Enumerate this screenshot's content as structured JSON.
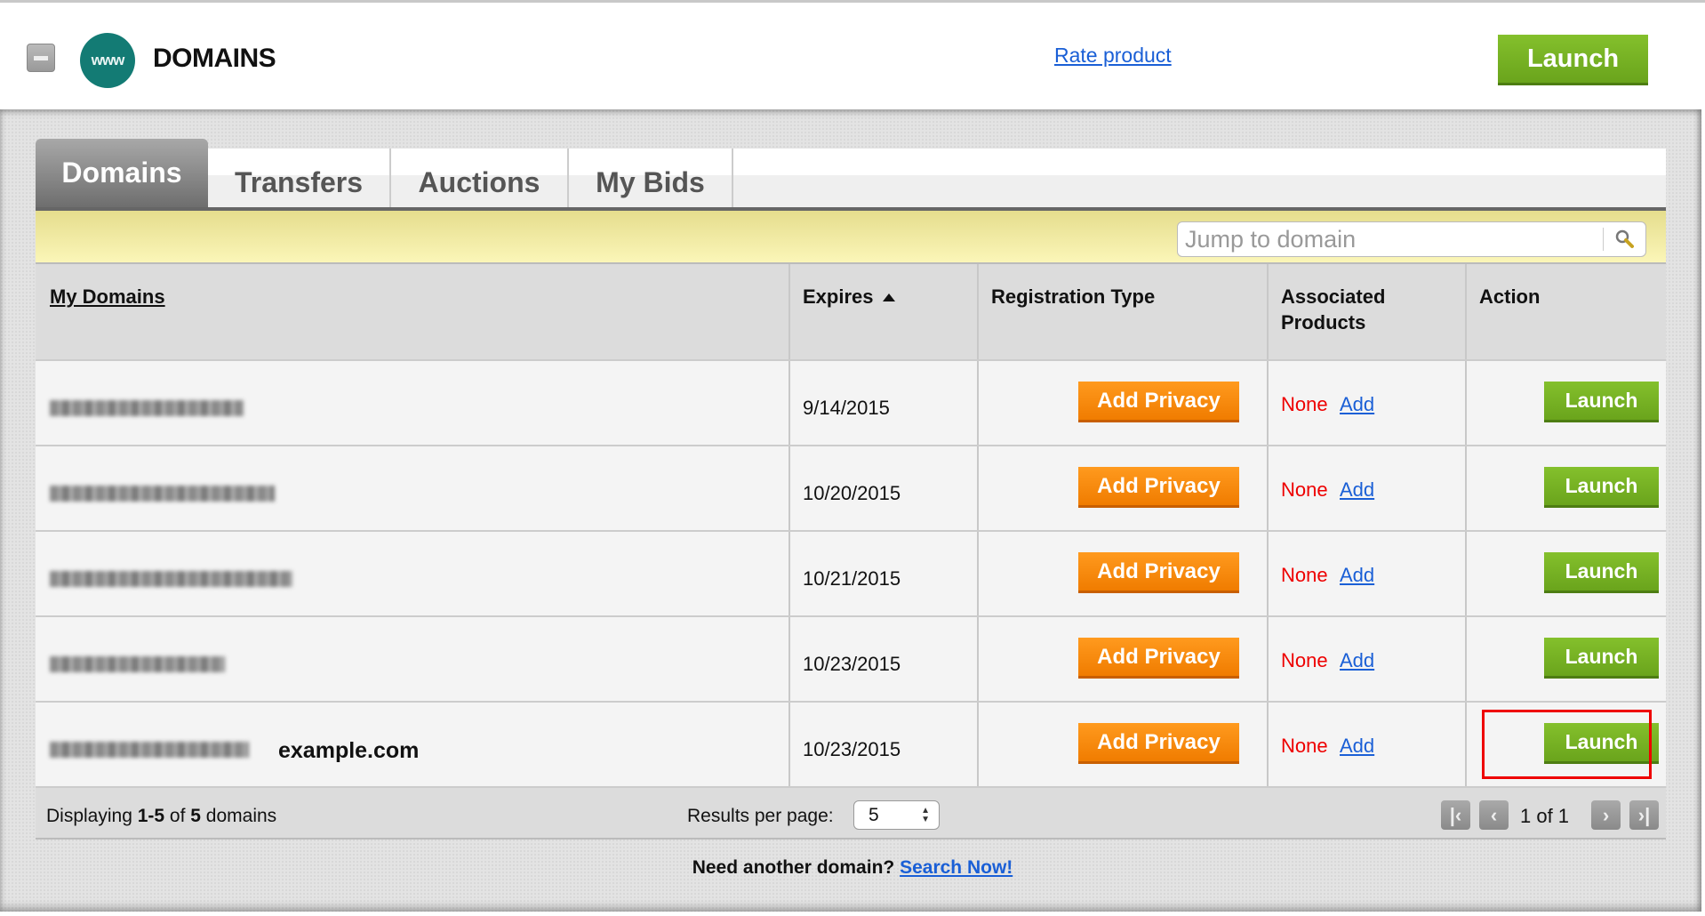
{
  "header": {
    "title": "DOMAINS",
    "logo_text": "www",
    "rate_link": "Rate product",
    "launch_label": "Launch"
  },
  "tabs": [
    {
      "label": "Domains",
      "active": true
    },
    {
      "label": "Transfers"
    },
    {
      "label": "Auctions"
    },
    {
      "label": "My Bids"
    }
  ],
  "search": {
    "placeholder": "Jump to domain"
  },
  "table": {
    "columns": [
      "My Domains",
      "Expires",
      "Registration Type",
      "Associated Products",
      "Action"
    ],
    "sort": {
      "column": "Expires",
      "direction": "ascending"
    },
    "rows": [
      {
        "expires": "9/14/2015",
        "registration": "Add Privacy",
        "products": "None",
        "add": "Add",
        "action": "Launch"
      },
      {
        "expires": "10/20/2015",
        "registration": "Add Privacy",
        "products": "None",
        "add": "Add",
        "action": "Launch"
      },
      {
        "expires": "10/21/2015",
        "registration": "Add Privacy",
        "products": "None",
        "add": "Add",
        "action": "Launch"
      },
      {
        "expires": "10/23/2015",
        "registration": "Add Privacy",
        "products": "None",
        "add": "Add",
        "action": "Launch"
      },
      {
        "expires": "10/23/2015",
        "registration": "Add Privacy",
        "products": "None",
        "add": "Add",
        "action": "Launch",
        "annotation": "example.com"
      }
    ]
  },
  "footer": {
    "displaying_prefix": "Displaying ",
    "range": "1-5",
    "of": " of ",
    "total": "5",
    "suffix": " domains",
    "results_per_page_label": "Results per page:",
    "results_per_page": "5",
    "page_text": "1 of 1"
  },
  "bottom": {
    "text": "Need another domain?",
    "link": "Search Now!"
  },
  "colors": {
    "launch_green": "#76b324",
    "privacy_orange": "#f68a0e",
    "link_blue": "#1a5fd6",
    "none_red": "#e00000",
    "highlight_box": "#e00000"
  }
}
